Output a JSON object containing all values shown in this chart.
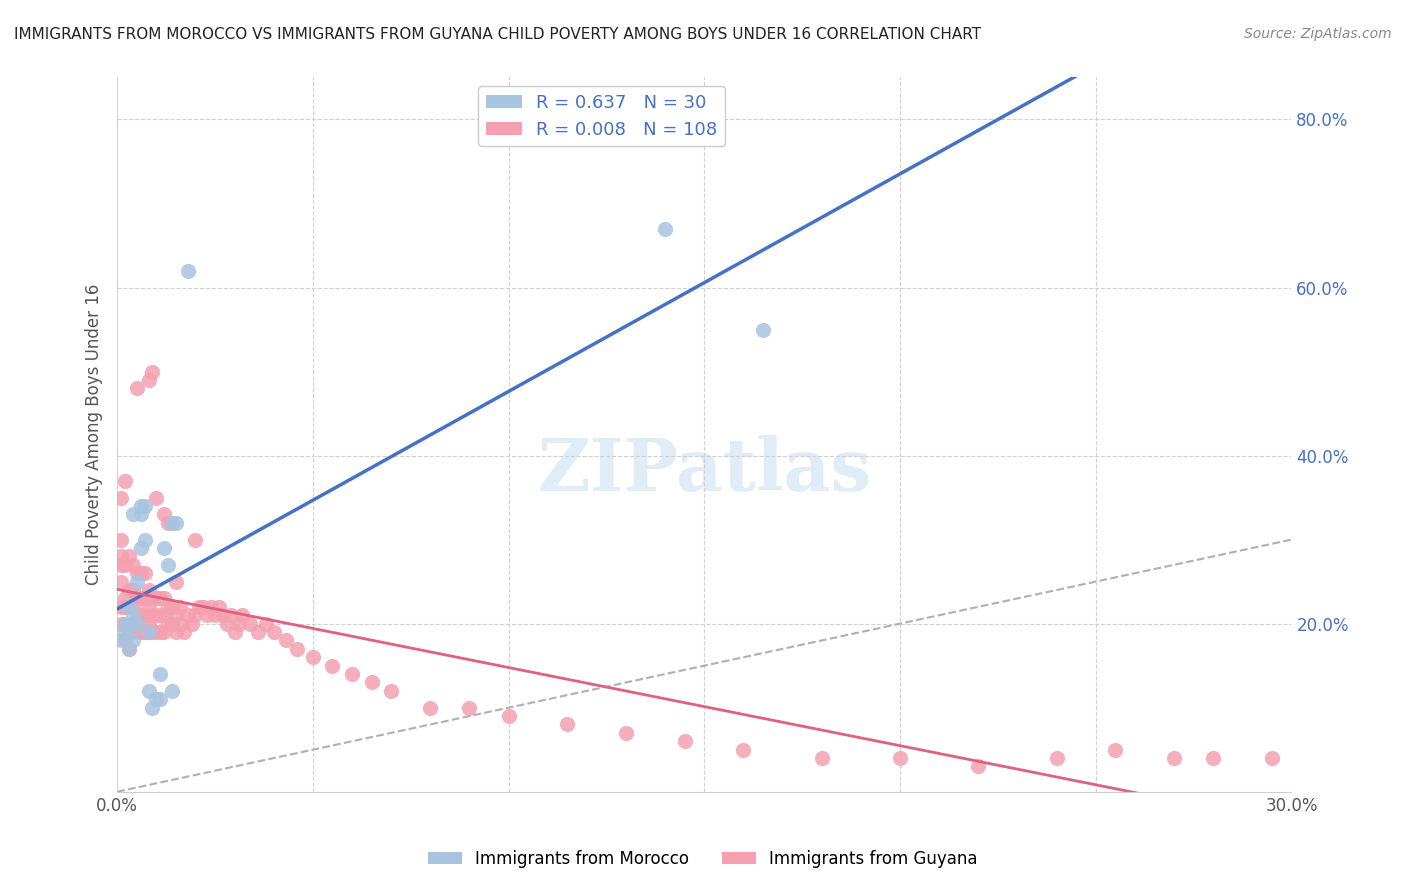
{
  "title": "IMMIGRANTS FROM MOROCCO VS IMMIGRANTS FROM GUYANA CHILD POVERTY AMONG BOYS UNDER 16 CORRELATION CHART",
  "source": "Source: ZipAtlas.com",
  "xlabel": "",
  "ylabel": "Child Poverty Among Boys Under 16",
  "xlim": [
    0.0,
    0.3
  ],
  "ylim": [
    0.0,
    0.85
  ],
  "xticks": [
    0.0,
    0.05,
    0.1,
    0.15,
    0.2,
    0.25,
    0.3
  ],
  "xticklabels": [
    "0.0%",
    "",
    "",
    "",
    "",
    "",
    "30.0%"
  ],
  "yticks_right": [
    0.2,
    0.4,
    0.6,
    0.8
  ],
  "ytick_labels_right": [
    "20.0%",
    "40.0%",
    "60.0%",
    "80.0%"
  ],
  "morocco_color": "#a8c4e0",
  "guyana_color": "#f4a0b0",
  "morocco_label": "Immigrants from Morocco",
  "guyana_label": "Immigrants from Guyana",
  "morocco_R": 0.637,
  "morocco_N": 30,
  "guyana_R": 0.008,
  "guyana_N": 108,
  "morocco_line_color": "#4472c4",
  "guyana_line_color": "#e06080",
  "ref_line_color": "#b0b0b0",
  "watermark": "ZIPatlas",
  "background_color": "#ffffff",
  "grid_color": "#d0d0d0",
  "morocco_x": [
    0.001,
    0.002,
    0.002,
    0.003,
    0.003,
    0.003,
    0.004,
    0.004,
    0.004,
    0.005,
    0.005,
    0.006,
    0.006,
    0.006,
    0.007,
    0.007,
    0.008,
    0.008,
    0.009,
    0.01,
    0.011,
    0.011,
    0.012,
    0.013,
    0.014,
    0.014,
    0.015,
    0.018,
    0.14,
    0.165
  ],
  "morocco_y": [
    0.18,
    0.19,
    0.2,
    0.17,
    0.2,
    0.22,
    0.18,
    0.21,
    0.33,
    0.2,
    0.25,
    0.29,
    0.33,
    0.34,
    0.3,
    0.34,
    0.19,
    0.12,
    0.1,
    0.11,
    0.11,
    0.14,
    0.29,
    0.27,
    0.32,
    0.12,
    0.32,
    0.62,
    0.67,
    0.55
  ],
  "guyana_x": [
    0.001,
    0.001,
    0.001,
    0.001,
    0.001,
    0.001,
    0.001,
    0.002,
    0.002,
    0.002,
    0.002,
    0.002,
    0.002,
    0.003,
    0.003,
    0.003,
    0.003,
    0.003,
    0.004,
    0.004,
    0.004,
    0.004,
    0.005,
    0.005,
    0.005,
    0.005,
    0.006,
    0.006,
    0.006,
    0.006,
    0.007,
    0.007,
    0.007,
    0.007,
    0.008,
    0.008,
    0.008,
    0.008,
    0.009,
    0.009,
    0.009,
    0.01,
    0.01,
    0.01,
    0.011,
    0.011,
    0.011,
    0.012,
    0.012,
    0.012,
    0.013,
    0.013,
    0.014,
    0.014,
    0.015,
    0.015,
    0.016,
    0.016,
    0.017,
    0.018,
    0.019,
    0.02,
    0.021,
    0.022,
    0.023,
    0.024,
    0.025,
    0.026,
    0.027,
    0.028,
    0.029,
    0.03,
    0.031,
    0.032,
    0.034,
    0.036,
    0.038,
    0.04,
    0.043,
    0.046,
    0.05,
    0.055,
    0.06,
    0.065,
    0.07,
    0.08,
    0.09,
    0.1,
    0.115,
    0.13,
    0.145,
    0.16,
    0.18,
    0.2,
    0.22,
    0.24,
    0.255,
    0.27,
    0.28,
    0.295,
    0.005,
    0.008,
    0.009,
    0.01,
    0.012,
    0.013,
    0.015,
    0.02
  ],
  "guyana_y": [
    0.2,
    0.22,
    0.25,
    0.27,
    0.28,
    0.3,
    0.35,
    0.18,
    0.2,
    0.22,
    0.23,
    0.27,
    0.37,
    0.17,
    0.19,
    0.22,
    0.24,
    0.28,
    0.2,
    0.22,
    0.24,
    0.27,
    0.19,
    0.21,
    0.23,
    0.26,
    0.19,
    0.21,
    0.23,
    0.26,
    0.19,
    0.21,
    0.23,
    0.26,
    0.19,
    0.2,
    0.22,
    0.24,
    0.19,
    0.21,
    0.23,
    0.19,
    0.21,
    0.23,
    0.19,
    0.21,
    0.23,
    0.19,
    0.21,
    0.23,
    0.2,
    0.22,
    0.2,
    0.22,
    0.19,
    0.21,
    0.2,
    0.22,
    0.19,
    0.21,
    0.2,
    0.21,
    0.22,
    0.22,
    0.21,
    0.22,
    0.21,
    0.22,
    0.21,
    0.2,
    0.21,
    0.19,
    0.2,
    0.21,
    0.2,
    0.19,
    0.2,
    0.19,
    0.18,
    0.17,
    0.16,
    0.15,
    0.14,
    0.13,
    0.12,
    0.1,
    0.1,
    0.09,
    0.08,
    0.07,
    0.06,
    0.05,
    0.04,
    0.04,
    0.03,
    0.04,
    0.05,
    0.04,
    0.04,
    0.04,
    0.48,
    0.49,
    0.5,
    0.35,
    0.33,
    0.32,
    0.25,
    0.3
  ]
}
